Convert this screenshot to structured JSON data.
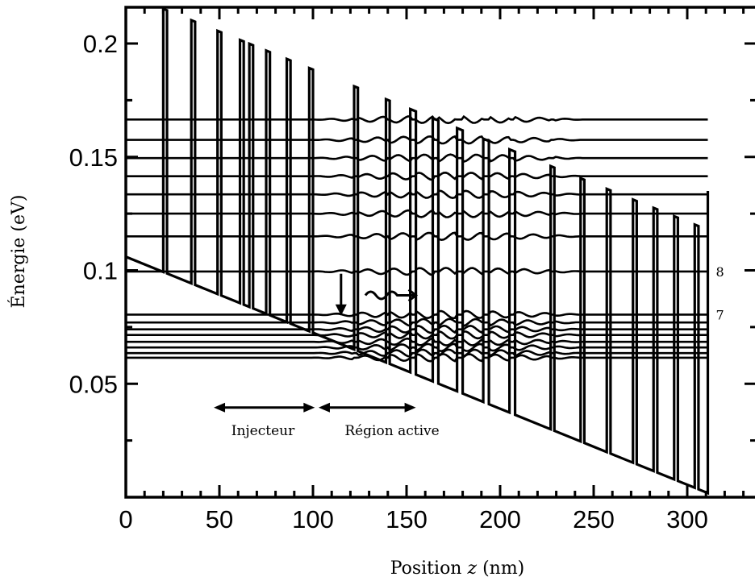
{
  "chart_data": {
    "type": "line",
    "title": "",
    "xlabel_pre": "Position ",
    "xlabel_var": "z",
    "xlabel_post": " (nm)",
    "ylabel": "Énergie (eV)",
    "xlim": [
      0,
      335
    ],
    "ylim": [
      0,
      0.218
    ],
    "x_ticks": [
      0,
      50,
      100,
      150,
      200,
      250,
      300
    ],
    "x_tick_labels": [
      "0",
      "50",
      "100",
      "150",
      "200",
      "250",
      "300"
    ],
    "y_ticks": [
      0.05,
      0.1,
      0.15,
      0.2
    ],
    "y_tick_labels": [
      "0.05",
      "0.1",
      "0.15",
      "0.2"
    ],
    "conduction_band": {
      "field_slope_ev_per_nm": -0.000335,
      "well_bottom_at_z0": 0.106,
      "barrier_top_at_z0": 0.222,
      "barriers_nm": [
        [
          20,
          22
        ],
        [
          35,
          37
        ],
        [
          49,
          51
        ],
        [
          61,
          63
        ],
        [
          66,
          68
        ],
        [
          75,
          77
        ],
        [
          86,
          88
        ],
        [
          98,
          100
        ],
        [
          122,
          124
        ],
        [
          139,
          141
        ],
        [
          152,
          155
        ],
        [
          164,
          167
        ],
        [
          177,
          180
        ],
        [
          191,
          194
        ],
        [
          205,
          208
        ],
        [
          227,
          229
        ],
        [
          243,
          245
        ],
        [
          257,
          259
        ],
        [
          271,
          273
        ],
        [
          282,
          284
        ],
        [
          293,
          295
        ],
        [
          304,
          306
        ]
      ],
      "z_end": 311
    },
    "subbands_ev": [
      {
        "name": "",
        "energy": 0.0995,
        "z_start": 0,
        "z_end": 311,
        "label": "8"
      },
      {
        "name": "",
        "energy": 0.0805,
        "z_start": 0,
        "z_end": 311,
        "label": "7"
      },
      {
        "energy": 0.1665,
        "z_start": 0,
        "z_end": 311
      },
      {
        "energy": 0.1575,
        "z_start": 0,
        "z_end": 311
      },
      {
        "energy": 0.1495,
        "z_start": 0,
        "z_end": 311
      },
      {
        "energy": 0.1415,
        "z_start": 0,
        "z_end": 311
      },
      {
        "energy": 0.1335,
        "z_start": 0,
        "z_end": 311
      },
      {
        "energy": 0.125,
        "z_start": 0,
        "z_end": 311
      },
      {
        "energy": 0.115,
        "z_start": 0,
        "z_end": 311
      },
      {
        "energy": 0.077,
        "z_start": 0,
        "z_end": 311
      },
      {
        "energy": 0.074,
        "z_start": 0,
        "z_end": 311
      },
      {
        "energy": 0.0715,
        "z_start": 0,
        "z_end": 311
      },
      {
        "energy": 0.0685,
        "z_start": 0,
        "z_end": 311
      },
      {
        "energy": 0.066,
        "z_start": 0,
        "z_end": 311
      },
      {
        "energy": 0.0635,
        "z_start": 0,
        "z_end": 311
      },
      {
        "energy": 0.0615,
        "z_start": 0,
        "z_end": 311
      }
    ],
    "annotations": {
      "injector": {
        "text": "Injecteur",
        "z_from": 47,
        "z_to": 101,
        "energy": 0.0395
      },
      "active": {
        "text": "Région active",
        "z_from": 103,
        "z_to": 155,
        "energy": 0.0395
      },
      "transition": {
        "z": 115,
        "from_energy": 0.0985,
        "to_energy": 0.08
      },
      "photon": {
        "z_from": 128,
        "z_to": 155,
        "energy": 0.089
      }
    }
  }
}
